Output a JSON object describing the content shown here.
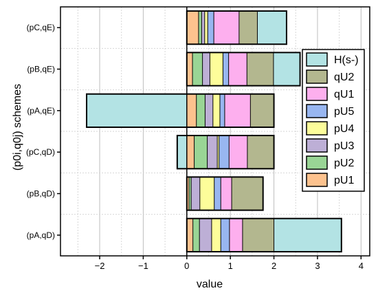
{
  "chart_data": {
    "type": "bar",
    "orientation": "horizontal",
    "stacked": true,
    "xlabel": "value",
    "ylabel": "(p0i,q0j) schemes",
    "xlim": [
      -2.9,
      4.2
    ],
    "xticks": [
      -2,
      -1,
      0,
      1,
      2,
      3,
      4
    ],
    "xtick_labels": [
      "−2",
      "−1",
      "0",
      "1",
      "2",
      "3",
      "4"
    ],
    "grid": true,
    "legend_position": "right",
    "categories": [
      "(pC,qE)",
      "(pB,qE)",
      "(pA,qE)",
      "(pC,qD)",
      "(pB,qD)",
      "(pA,qD)"
    ],
    "series": [
      {
        "name": "pU1",
        "color": "#FDC28E",
        "values": [
          0.27,
          0.13,
          0.22,
          0.17,
          0.05,
          0.14
        ]
      },
      {
        "name": "pU2",
        "color": "#99D595",
        "values": [
          0.07,
          0.23,
          0.2,
          0.3,
          0.05,
          0.15
        ]
      },
      {
        "name": "pU3",
        "color": "#BDAFD6",
        "values": [
          0.07,
          0.17,
          0.18,
          0.23,
          0.2,
          0.28
        ]
      },
      {
        "name": "pU4",
        "color": "#FDFD9A",
        "values": [
          0.07,
          0.3,
          0.16,
          0.04,
          0.33,
          0.21
        ]
      },
      {
        "name": "pU5",
        "color": "#98B6F0",
        "values": [
          0.14,
          0.13,
          0.11,
          0.23,
          0.15,
          0.2
        ]
      },
      {
        "name": "qU1",
        "color": "#FDAFEE",
        "values": [
          0.58,
          0.42,
          0.59,
          0.42,
          0.25,
          0.3
        ]
      },
      {
        "name": "qU2",
        "color": "#B3B78F",
        "values": [
          0.42,
          0.61,
          0.54,
          0.61,
          0.72,
          0.72
        ]
      },
      {
        "name": "H(s-)",
        "color": "#B3E3E4",
        "values": [
          0.67,
          0.61,
          -2.3,
          -0.22,
          0.0,
          1.55
        ]
      }
    ],
    "legend_order": [
      "H(s-)",
      "qU2",
      "qU1",
      "pU5",
      "pU4",
      "pU3",
      "pU2",
      "pU1"
    ]
  }
}
